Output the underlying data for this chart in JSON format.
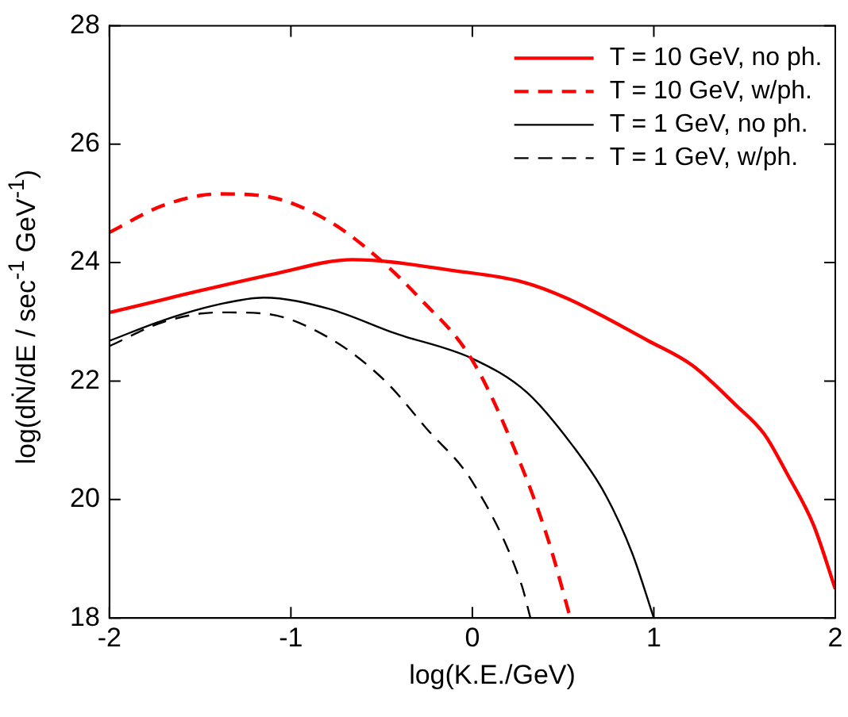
{
  "chart_data": {
    "type": "line",
    "xlabel": "log(K.E./GeV)",
    "ylabel": "log(dṄ/dE / sec$^{-1}$ GeV$^{-1}$)",
    "xlim": [
      -2,
      2
    ],
    "ylim": [
      18,
      28
    ],
    "xticks": [
      -2,
      -1,
      0,
      1,
      2
    ],
    "yticks": [
      18,
      20,
      22,
      24,
      26,
      28
    ],
    "grid": false,
    "legend": "top right",
    "marker": "none",
    "series": [
      {
        "name": "T = 10 GeV, no ph.",
        "color": "#ff0000",
        "line_style": "solid",
        "x": [
          -2,
          -1.09,
          -0.66,
          -0.09,
          0.27,
          0.52,
          0.97,
          1.21,
          1.45,
          1.61,
          1.73,
          1.88,
          2.0
        ],
        "values": [
          23.16,
          23.81,
          24.05,
          23.86,
          23.68,
          23.4,
          22.68,
          22.27,
          21.6,
          21.1,
          20.46,
          19.57,
          18.49
        ]
      },
      {
        "name": "T = 10 GeV, w/ph.",
        "color": "#ff0000",
        "line_style": "dashed",
        "x": [
          -2,
          -1.7,
          -1.39,
          -1.12,
          -0.79,
          -0.52,
          -0.3,
          0,
          0.27,
          0.42,
          0.54
        ],
        "values": [
          24.51,
          24.97,
          25.16,
          25.11,
          24.7,
          24.08,
          23.43,
          22.35,
          20.57,
          19.3,
          18.0
        ]
      },
      {
        "name": "T = 1 GeV, no ph.",
        "color": "#000000",
        "line_style": "solid",
        "x": [
          -2,
          -1.7,
          -1.39,
          -1.15,
          -0.79,
          -0.43,
          0,
          0.3,
          0.55,
          0.73,
          0.88,
          1.0
        ],
        "values": [
          22.68,
          23.03,
          23.3,
          23.41,
          23.22,
          22.81,
          22.38,
          21.81,
          20.92,
          20.1,
          19.1,
          18.0
        ]
      },
      {
        "name": "T = 1 GeV, w/ph.",
        "color": "#000000",
        "line_style": "dashed",
        "x": [
          -2,
          -1.7,
          -1.39,
          -1.15,
          -0.79,
          -0.48,
          -0.25,
          0,
          0.27,
          0.32
        ],
        "values": [
          22.59,
          23.0,
          23.16,
          23.14,
          22.73,
          22.0,
          21.19,
          20.3,
          18.57,
          18.0
        ]
      }
    ]
  }
}
